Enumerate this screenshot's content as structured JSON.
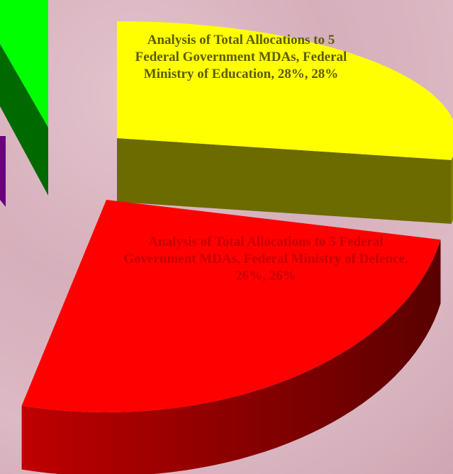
{
  "chart_data": {
    "type": "pie3d",
    "series_name": "Analysis of Total Allocations to 5 Federal Government MDAs",
    "categories": [
      "Federal Ministry of Education",
      "Federal Ministry of Defence"
    ],
    "values": [
      28,
      26
    ],
    "labels": [
      "Analysis of Total Allocations to 5 Federal Government MDAs, Federal Ministry of Education, 28%, 28%",
      "Analysis of Total Allocations to 5 Federal Government MDAs, Federal Ministry of Defence, 26%, 26%"
    ],
    "colors": [
      "#ffff00",
      "#ff0000"
    ],
    "side_colors": [
      "#6b6b00",
      "#7a0000"
    ],
    "label_colors": [
      "#5c5c00",
      "#c80000"
    ]
  }
}
